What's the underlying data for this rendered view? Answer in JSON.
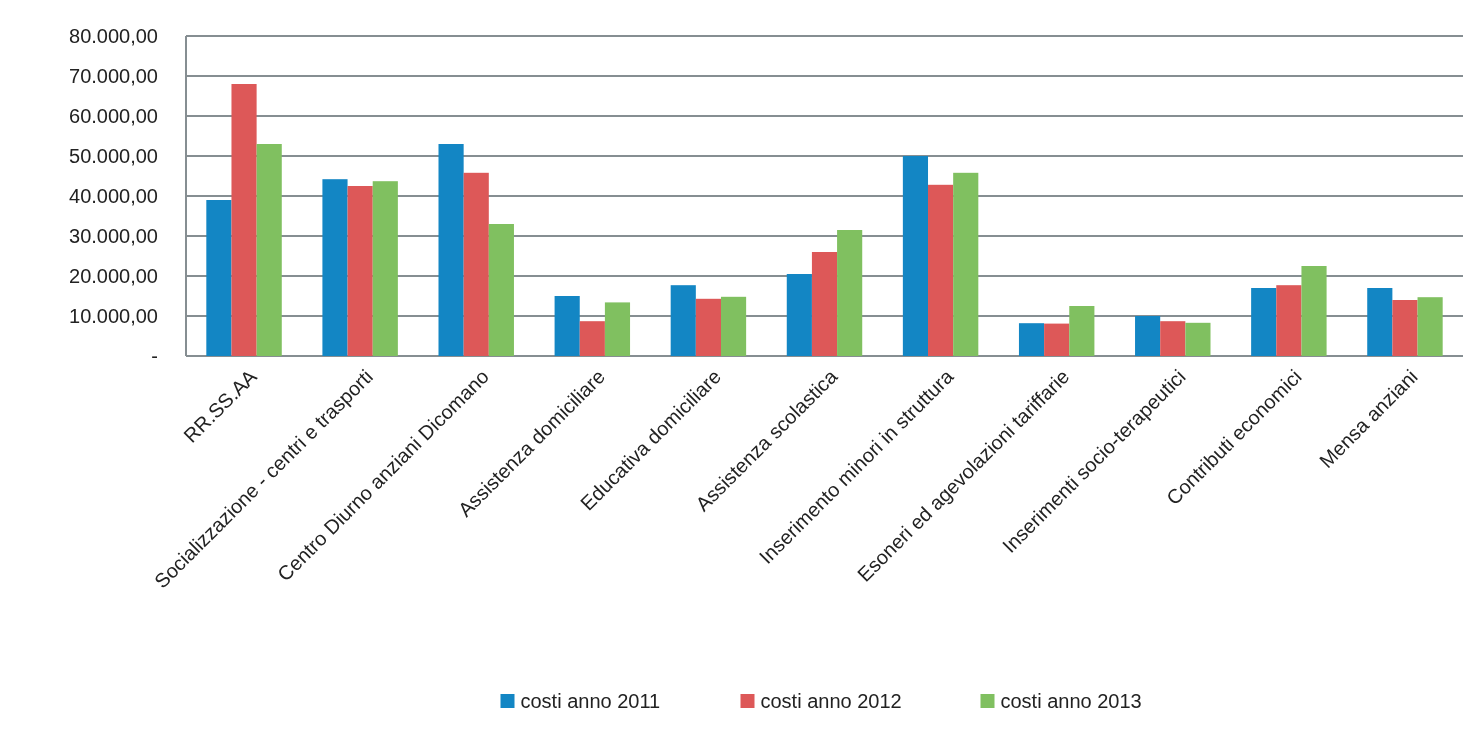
{
  "chart_data": {
    "type": "bar",
    "categories": [
      "RR.SS.AA",
      "Socializzazione - centri e trasporti",
      "Centro Diurno anziani Dicomano",
      "Assistenza domiciliare",
      "Educativa domiciliare",
      "Assistenza scolastica",
      "Inserimento minori in struttura",
      "Esoneri ed agevolazioni tariffarie",
      "Inserimenti socio-terapeutici",
      "Contributi economici",
      "Mensa anziani"
    ],
    "series": [
      {
        "name": "costi anno 2011",
        "color": "#1386c4",
        "values": [
          39000,
          44200,
          53000,
          15000,
          17700,
          20500,
          50000,
          8200,
          10000,
          17000,
          17000
        ]
      },
      {
        "name": "costi anno 2012",
        "color": "#dd5858",
        "values": [
          68000,
          42500,
          45800,
          8700,
          14300,
          26000,
          42800,
          8100,
          8700,
          17700,
          14000
        ]
      },
      {
        "name": "costi anno 2013",
        "color": "#80c060",
        "values": [
          53000,
          43700,
          33000,
          13400,
          14800,
          31500,
          45800,
          12500,
          8300,
          22500,
          14700
        ]
      }
    ],
    "ylim": [
      0,
      80000
    ],
    "yticks": [
      {
        "value": 0,
        "label": "-"
      },
      {
        "value": 10000,
        "label": "10.000,00"
      },
      {
        "value": 20000,
        "label": "20.000,00"
      },
      {
        "value": 30000,
        "label": "30.000,00"
      },
      {
        "value": 40000,
        "label": "40.000,00"
      },
      {
        "value": 50000,
        "label": "50.000,00"
      },
      {
        "value": 60000,
        "label": "60.000,00"
      },
      {
        "value": 70000,
        "label": "70.000,00"
      },
      {
        "value": 80000,
        "label": "80.000,00"
      }
    ],
    "grid": "y",
    "legend": "bottom"
  }
}
